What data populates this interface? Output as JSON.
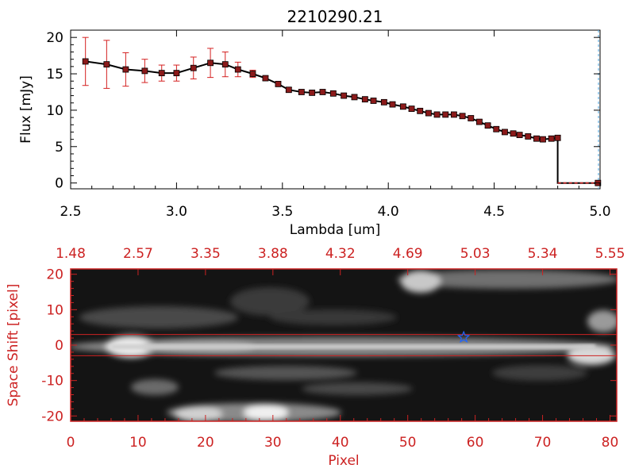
{
  "chart_data": [
    {
      "type": "line",
      "title": "2210290.21",
      "xlabel": "Lambda [um]",
      "ylabel": "Flux [mJy]",
      "xlim": [
        2.5,
        5.0
      ],
      "ylim": [
        -0.8,
        21
      ],
      "xticks": [
        "2.5",
        "3.0",
        "3.5",
        "4.0",
        "4.5",
        "5.0"
      ],
      "yticks": [
        "0",
        "5",
        "10",
        "15",
        "20"
      ],
      "series": [
        {
          "name": "Flux",
          "x": [
            2.57,
            2.67,
            2.76,
            2.85,
            2.93,
            3.0,
            3.08,
            3.16,
            3.23,
            3.29,
            3.36,
            3.42,
            3.48,
            3.53,
            3.59,
            3.64,
            3.69,
            3.74,
            3.79,
            3.84,
            3.89,
            3.93,
            3.98,
            4.02,
            4.07,
            4.11,
            4.15,
            4.19,
            4.23,
            4.27,
            4.31,
            4.35,
            4.39,
            4.43,
            4.47,
            4.51,
            4.55,
            4.59,
            4.62,
            4.66,
            4.7,
            4.73,
            4.77,
            4.8,
            4.99
          ],
          "y": [
            16.7,
            16.3,
            15.6,
            15.4,
            15.1,
            15.1,
            15.8,
            16.5,
            16.3,
            15.6,
            15.0,
            14.4,
            13.6,
            12.8,
            12.5,
            12.4,
            12.5,
            12.3,
            12.0,
            11.8,
            11.5,
            11.3,
            11.1,
            10.8,
            10.5,
            10.2,
            9.9,
            9.6,
            9.4,
            9.4,
            9.4,
            9.2,
            8.9,
            8.4,
            7.9,
            7.4,
            7.0,
            6.8,
            6.6,
            6.4,
            6.1,
            6.0,
            6.1,
            6.2,
            0.0
          ],
          "err": [
            3.3,
            3.3,
            2.3,
            1.6,
            1.1,
            1.1,
            1.5,
            2.0,
            1.7,
            1.0,
            0.5,
            0.3,
            0.3,
            0.3,
            0.3,
            0.3,
            0.3,
            0.3,
            0.3,
            0.3,
            0.3,
            0.3,
            0.3,
            0.3,
            0.3,
            0.3,
            0.3,
            0.3,
            0.3,
            0.3,
            0.3,
            0.3,
            0.3,
            0.3,
            0.3,
            0.3,
            0.3,
            0.3,
            0.3,
            0.3,
            0.3,
            0.3,
            0.3,
            0.3,
            0.3
          ]
        }
      ]
    },
    {
      "type": "heatmap",
      "xlabel": "Pixel",
      "ylabel": "Space Shift [pixel]",
      "xlim": [
        0,
        81
      ],
      "ylim": [
        -21.5,
        21.5
      ],
      "xticks": [
        "0",
        "10",
        "20",
        "30",
        "40",
        "50",
        "60",
        "70",
        "80"
      ],
      "yticks": [
        "-20",
        "-10",
        "0",
        "10",
        "20"
      ],
      "top_ticks": [
        "1.48",
        "2.57",
        "3.35",
        "3.88",
        "4.32",
        "4.69",
        "5.03",
        "5.34",
        "5.55"
      ],
      "extraction_window": [
        -3,
        3
      ],
      "star_marker": {
        "x": 58.3,
        "y": 2.2
      },
      "colors": {
        "frame": "#cc2222",
        "star": "#2266ff",
        "line": "#000000",
        "markers": "#8b1a1a",
        "errorbars": "#d42020"
      }
    }
  ]
}
